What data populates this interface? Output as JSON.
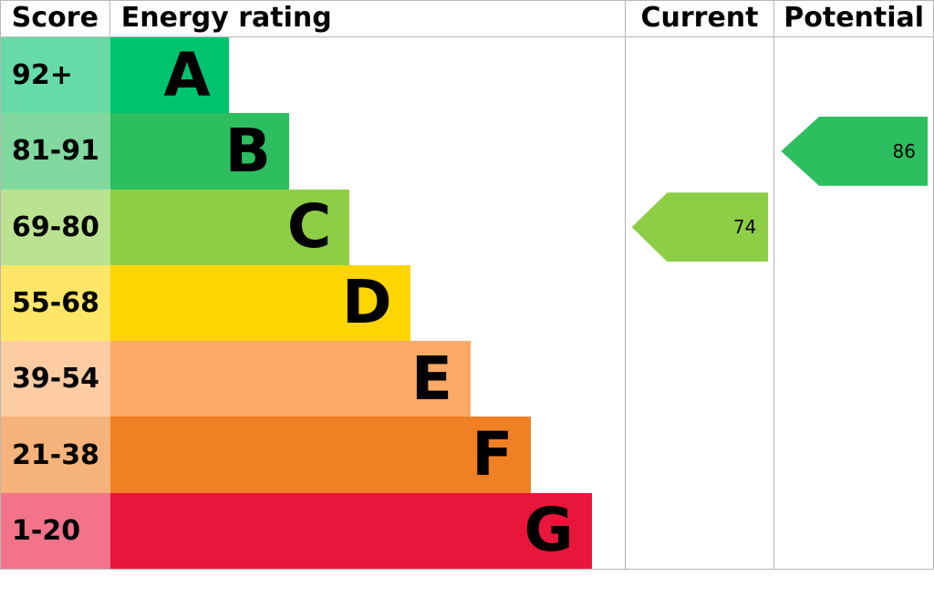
{
  "chart_data": {
    "type": "bar",
    "title": "Energy rating",
    "header": {
      "score": "Score",
      "rating": "Energy rating",
      "current": "Current",
      "potential": "Potential"
    },
    "categories": [
      "A",
      "B",
      "C",
      "D",
      "E",
      "F",
      "G"
    ],
    "bands": [
      {
        "letter": "A",
        "score": "92+",
        "color": "#00c36e",
        "tint": "#66dba8"
      },
      {
        "letter": "B",
        "score": "81-91",
        "color": "#2dbe60",
        "tint": "#81d89f"
      },
      {
        "letter": "C",
        "score": "69-80",
        "color": "#8dce46",
        "tint": "#bae290"
      },
      {
        "letter": "D",
        "score": "55-68",
        "color": "#ffd500",
        "tint": "#ffe666"
      },
      {
        "letter": "E",
        "score": "39-54",
        "color": "#fcaa65",
        "tint": "#fdcca3"
      },
      {
        "letter": "F",
        "score": "21-38",
        "color": "#ef8023",
        "tint": "#f5b37b"
      },
      {
        "letter": "G",
        "score": "1-20",
        "color": "#e9153b",
        "tint": "#f2738a"
      }
    ],
    "current": {
      "value": 74,
      "band": "C",
      "color": "#8dce46"
    },
    "potential": {
      "value": 86,
      "band": "B",
      "color": "#2dbe60"
    }
  }
}
